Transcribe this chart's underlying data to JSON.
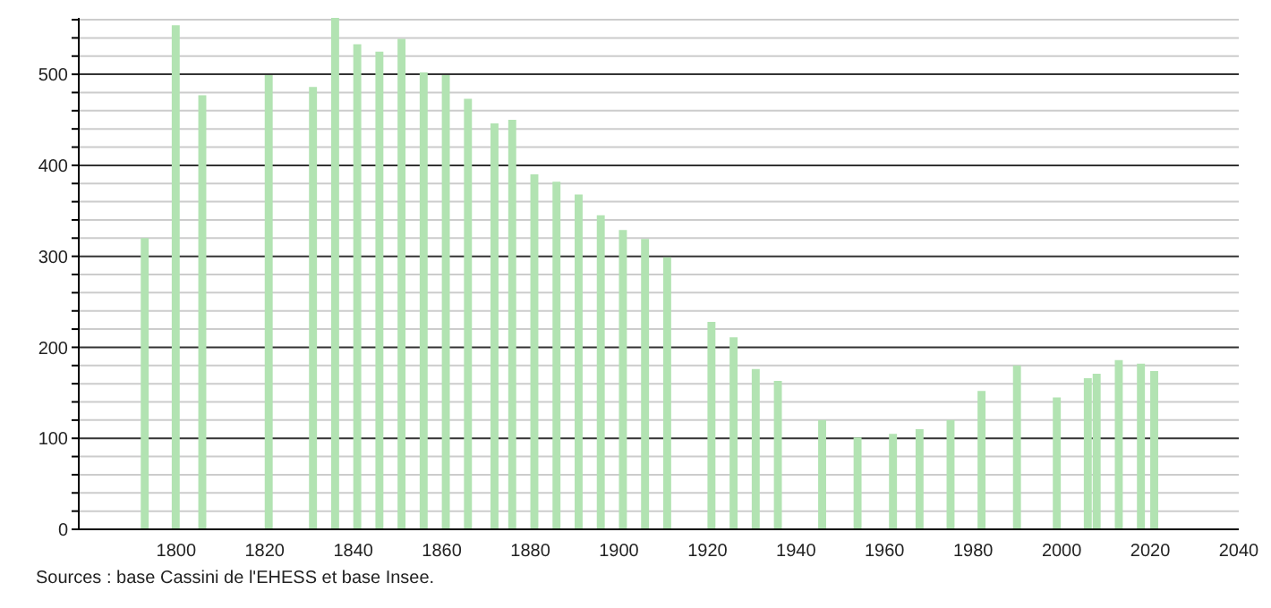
{
  "chart_data": {
    "type": "bar",
    "x": [
      1793,
      1800,
      1806,
      1821,
      1831,
      1836,
      1841,
      1846,
      1851,
      1856,
      1861,
      1866,
      1872,
      1876,
      1881,
      1886,
      1891,
      1896,
      1901,
      1906,
      1911,
      1921,
      1926,
      1931,
      1936,
      1946,
      1954,
      1962,
      1968,
      1975,
      1982,
      1990,
      1999,
      2006,
      2008,
      2013,
      2018,
      2021
    ],
    "values": [
      320,
      554,
      477,
      499,
      486,
      562,
      533,
      525,
      539,
      502,
      499,
      473,
      446,
      450,
      390,
      382,
      368,
      345,
      329,
      319,
      299,
      228,
      211,
      176,
      163,
      120,
      101,
      105,
      110,
      120,
      152,
      180,
      145,
      166,
      171,
      186,
      182,
      174
    ],
    "color": "#b2e3b2",
    "xlim": [
      1778,
      2040
    ],
    "xticks": [
      1800,
      1820,
      1840,
      1860,
      1880,
      1900,
      1920,
      1940,
      1960,
      1980,
      2000,
      2020,
      2040
    ],
    "ylim": [
      0,
      562
    ],
    "yticks": [
      0,
      {
        "value": 20,
        "label": null
      },
      {
        "value": 40,
        "label": null
      },
      {
        "value": 60,
        "label": null
      },
      {
        "value": 80,
        "label": null
      },
      100,
      {
        "value": 120,
        "label": null
      },
      {
        "value": 140,
        "label": null
      },
      {
        "value": 160,
        "label": null
      },
      {
        "value": 180,
        "label": null
      },
      200,
      {
        "value": 220,
        "label": null
      },
      {
        "value": 240,
        "label": null
      },
      {
        "value": 260,
        "label": null
      },
      {
        "value": 280,
        "label": null
      },
      300,
      {
        "value": 320,
        "label": null
      },
      {
        "value": 340,
        "label": null
      },
      {
        "value": 360,
        "label": null
      },
      {
        "value": 380,
        "label": null
      },
      400,
      {
        "value": 420,
        "label": null
      },
      {
        "value": 440,
        "label": null
      },
      {
        "value": 460,
        "label": null
      },
      {
        "value": 480,
        "label": null
      },
      500,
      {
        "value": 520,
        "label": null
      },
      {
        "value": 540,
        "label": null
      },
      {
        "value": 560,
        "label": null
      }
    ],
    "grid": "y",
    "annotations": [
      "Sources : base Cassini de l'EHESS et base Insee."
    ]
  }
}
